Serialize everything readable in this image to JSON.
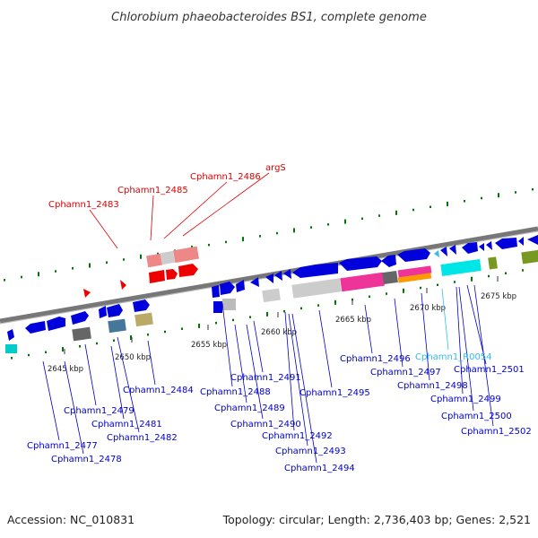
{
  "title": "Chlorobium phaeobacteroides BS1, complete genome",
  "footer": {
    "accession": "Accession: NC_010831",
    "topology": "Topology: circular; Length: 2,736,403 bp; Genes: 2,521"
  },
  "colors": {
    "forward_gene": "#0000e6",
    "red_label": "#dd0000",
    "blue_label": "#0000cc",
    "rna_label": "#33bbee",
    "backbone": "#888888",
    "gc_tick": "#007700"
  },
  "ticks": [
    "2645 kbp",
    "2650 kbp",
    "2655 kbp",
    "2660 kbp",
    "2665 kbp",
    "2670 kbp",
    "2675 kbp"
  ],
  "red_labels": [
    "Cphamn1_2483",
    "Cphamn1_2485",
    "Cphamn1_2486",
    "argS"
  ],
  "blue_labels": [
    "Cphamn1_2477",
    "Cphamn1_2478",
    "Cphamn1_2479",
    "Cphamn1_2481",
    "Cphamn1_2482",
    "Cphamn1_2484",
    "Cphamn1_2488",
    "Cphamn1_2489",
    "Cphamn1_2490",
    "Cphamn1_2491",
    "Cphamn1_2492",
    "Cphamn1_2493",
    "Cphamn1_2494",
    "Cphamn1_2495",
    "Cphamn1_2496",
    "Cphamn1_2497",
    "Cphamn1_2498",
    "Cphamn1_2499",
    "Cphamn1_2500",
    "Cphamn1_2501",
    "Cphamn1_2502"
  ],
  "rna_labels": [
    "Cphamn1_R0054"
  ]
}
